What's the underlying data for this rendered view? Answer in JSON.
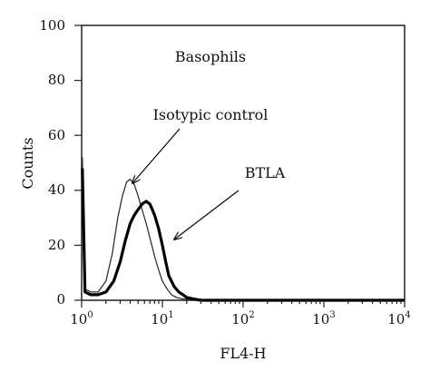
{
  "chart_data": {
    "type": "line",
    "title": "",
    "xlabel": "FL4-H",
    "ylabel": "Counts",
    "x_scale": "log",
    "xlim": [
      1,
      10000
    ],
    "ylim": [
      0,
      100
    ],
    "grid": false,
    "y_ticks": [
      "0",
      "20",
      "40",
      "60",
      "80",
      "100"
    ],
    "x_ticks": [
      {
        "base": "10",
        "exp": "0"
      },
      {
        "base": "10",
        "exp": "1"
      },
      {
        "base": "10",
        "exp": "2"
      },
      {
        "base": "10",
        "exp": "3"
      },
      {
        "base": "10",
        "exp": "4"
      }
    ],
    "annotations": {
      "panel_label": "Basophils",
      "isotypic_label": "Isotypic control",
      "btla_label": "BTLA"
    },
    "series": [
      {
        "name": "Isotypic control",
        "color": "#333333",
        "style": "thin",
        "x": [
          1.02,
          1.1,
          1.3,
          1.6,
          2.0,
          2.4,
          2.8,
          3.2,
          3.6,
          4.0,
          4.5,
          5.0,
          5.6,
          6.3,
          7.1,
          8.0,
          9.0,
          10.0,
          11.5,
          13.0,
          15.0,
          18.0,
          22.0,
          30.0,
          50.0,
          100.0,
          1000.0,
          10000.0
        ],
        "y": [
          52,
          4,
          3,
          3,
          7,
          17,
          30,
          38,
          43,
          44,
          42,
          38,
          33,
          28,
          22,
          16,
          11,
          7,
          4,
          2,
          1,
          0.5,
          0.2,
          0,
          0,
          0,
          0,
          0
        ]
      },
      {
        "name": "BTLA",
        "color": "#000000",
        "style": "thick",
        "x": [
          1.02,
          1.1,
          1.3,
          1.6,
          2.0,
          2.5,
          3.0,
          3.5,
          4.0,
          4.5,
          5.0,
          5.6,
          6.3,
          7.0,
          7.5,
          8.0,
          9.0,
          10.0,
          11.0,
          12.0,
          14.0,
          16.0,
          18.0,
          20.0,
          24.0,
          30.0,
          50.0,
          100.0,
          1000.0,
          10000.0
        ],
        "y": [
          48,
          3,
          2,
          2,
          3,
          7,
          14,
          22,
          28,
          31,
          33,
          35,
          36,
          35,
          33,
          31,
          26,
          20,
          14,
          9,
          5,
          3,
          2,
          1,
          0.5,
          0,
          0,
          0,
          0,
          0
        ]
      }
    ]
  }
}
